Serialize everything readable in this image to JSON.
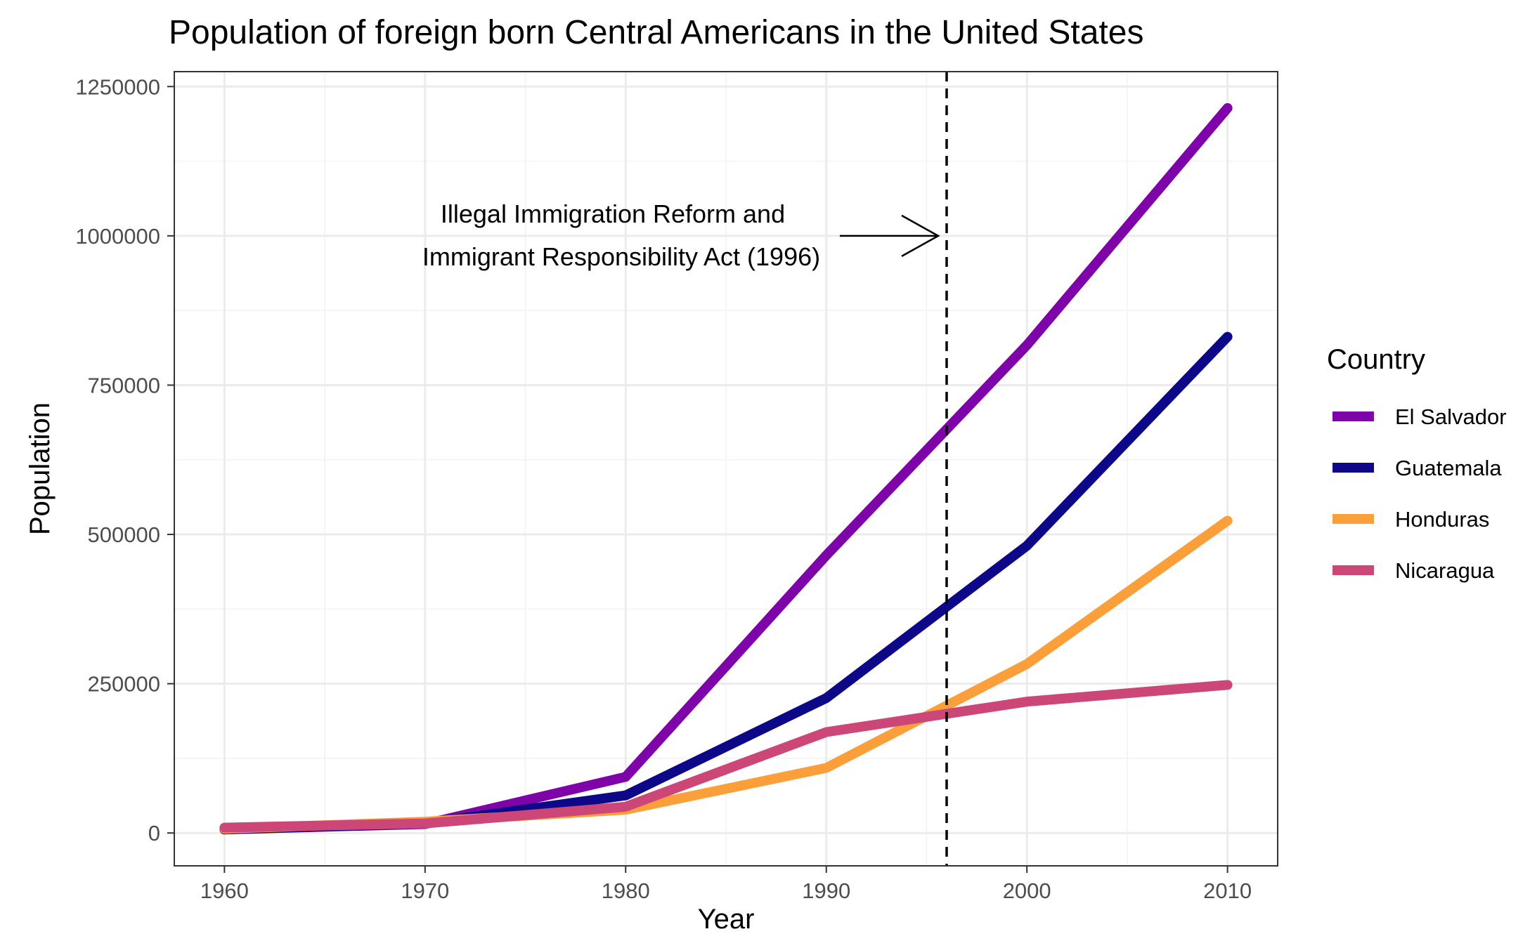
{
  "chart_data": {
    "type": "line",
    "title": "Population of foreign born Central Americans in the United States",
    "xlabel": "Year",
    "ylabel": "Population",
    "x": [
      1960,
      1970,
      1980,
      1990,
      2000,
      2010
    ],
    "xlim": [
      1957.5,
      2012.5
    ],
    "ylim": [
      -55000,
      1275000
    ],
    "x_ticks": [
      1960,
      1970,
      1980,
      1990,
      2000,
      2010
    ],
    "x_tick_labels": [
      "1960",
      "1970",
      "1980",
      "1990",
      "2000",
      "2010"
    ],
    "y_ticks": [
      0,
      250000,
      500000,
      750000,
      1000000,
      1250000
    ],
    "y_tick_labels": [
      "0",
      "250000",
      "500000",
      "750000",
      "1000000",
      "1250000"
    ],
    "grid": true,
    "legend": {
      "title": "Country",
      "position": "right"
    },
    "series": [
      {
        "name": "El Salvador",
        "color": "#7e03a8",
        "values": [
          6000,
          15000,
          94000,
          465000,
          817000,
          1214000
        ]
      },
      {
        "name": "Guatemala",
        "color": "#0d0887",
        "values": [
          6000,
          16000,
          63000,
          226000,
          481000,
          831000
        ]
      },
      {
        "name": "Honduras",
        "color": "#fb9f3a",
        "values": [
          7000,
          19000,
          39000,
          109000,
          283000,
          523000
        ]
      },
      {
        "name": "Nicaragua",
        "color": "#cc4778",
        "values": [
          9000,
          16000,
          44000,
          169000,
          220000,
          248000
        ]
      }
    ],
    "reference_line": {
      "x": 1996,
      "style": "dashed",
      "color": "#000000"
    },
    "annotation": {
      "lines": [
        "Illegal Immigration Reform and",
        "Immigrant Responsibility Act (1996)"
      ],
      "points_to_year": 1996
    }
  }
}
